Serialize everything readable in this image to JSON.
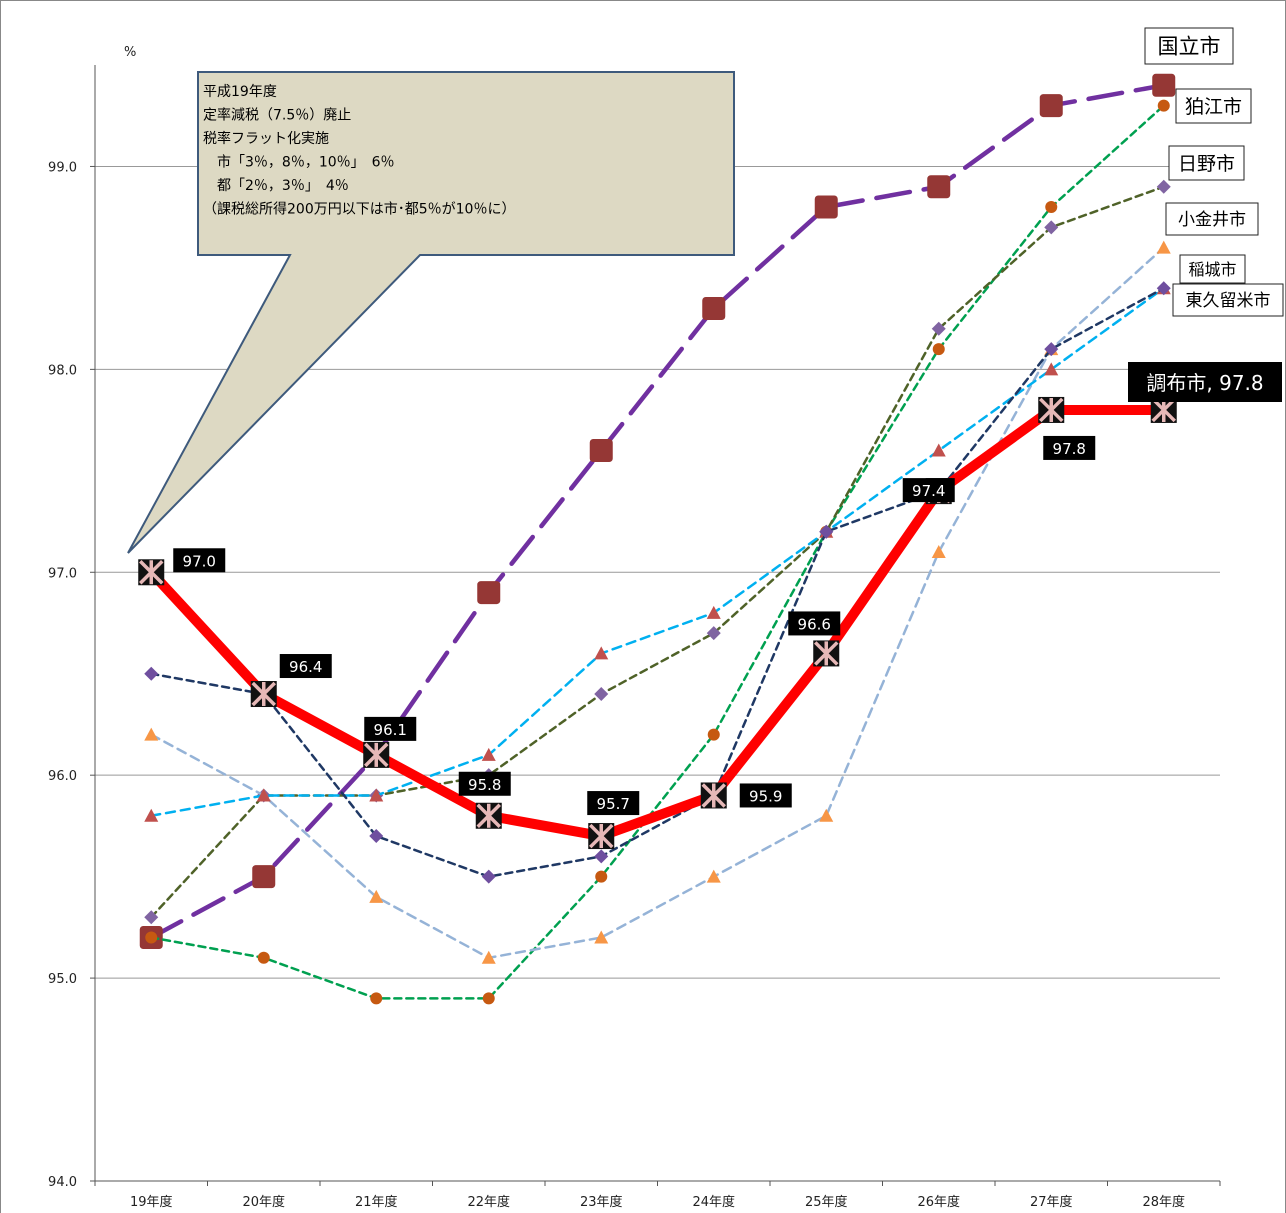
{
  "chart_data": {
    "type": "line",
    "title": "",
    "xlabel": "",
    "ylabel": "%",
    "ylim": [
      94.0,
      99.5
    ],
    "yticks": [
      "94.0",
      "95.0",
      "96.0",
      "97.0",
      "98.0",
      "99.0"
    ],
    "grid": true,
    "categories": [
      "19年度",
      "20年度",
      "21年度",
      "22年度",
      "23年度",
      "24年度",
      "25年度",
      "26年度",
      "27年度",
      "28年度"
    ],
    "series": [
      {
        "name": "国立市",
        "color": "#7030A0",
        "marker": "square",
        "values": [
          95.2,
          95.5,
          96.1,
          96.9,
          97.6,
          98.3,
          98.8,
          98.9,
          99.3,
          99.4
        ]
      },
      {
        "name": "狛江市",
        "color": "#00A050",
        "marker": "circle",
        "values": [
          95.2,
          95.1,
          94.9,
          94.9,
          95.5,
          96.2,
          97.2,
          98.1,
          98.8,
          99.3
        ]
      },
      {
        "name": "日野市",
        "color": "#4F6228",
        "marker": "diamond",
        "values": [
          95.3,
          95.9,
          95.9,
          96.0,
          96.4,
          96.7,
          97.2,
          98.2,
          98.7,
          98.9
        ]
      },
      {
        "name": "小金井市",
        "color": "#95B3D7",
        "marker": "triangle",
        "values": [
          96.2,
          95.9,
          95.4,
          95.1,
          95.2,
          95.5,
          95.8,
          97.1,
          98.1,
          98.6
        ]
      },
      {
        "name": "稲城市",
        "color": "#00B0F0",
        "marker": "triangle",
        "values": [
          95.8,
          95.9,
          95.9,
          96.1,
          96.6,
          96.8,
          97.2,
          97.6,
          98.0,
          98.4
        ]
      },
      {
        "name": "東久留米市",
        "color": "#1F3864",
        "marker": "diamond",
        "values": [
          96.5,
          96.4,
          95.7,
          95.5,
          95.6,
          95.9,
          97.2,
          97.4,
          98.1,
          98.4
        ]
      },
      {
        "name": "調布市",
        "color": "#FF0000",
        "marker": "x",
        "values": [
          97.0,
          96.4,
          96.1,
          95.8,
          95.7,
          95.9,
          96.6,
          97.4,
          97.8,
          97.8
        ]
      }
    ],
    "data_labels": [
      "97.0",
      "96.4",
      "96.1",
      "95.8",
      "95.7",
      "95.9",
      "96.6",
      "97.4",
      "97.8"
    ],
    "end_label": "調布市, 97.8",
    "annotation": [
      "平成19年度",
      "定率減税（7.5％）廃止",
      "税率フラット化実施",
      "　市「3％，8％，10％」　6％",
      "　都「2％，3％」　4％",
      "（課税総所得200万円以下は市･都5％が10％に）"
    ]
  }
}
